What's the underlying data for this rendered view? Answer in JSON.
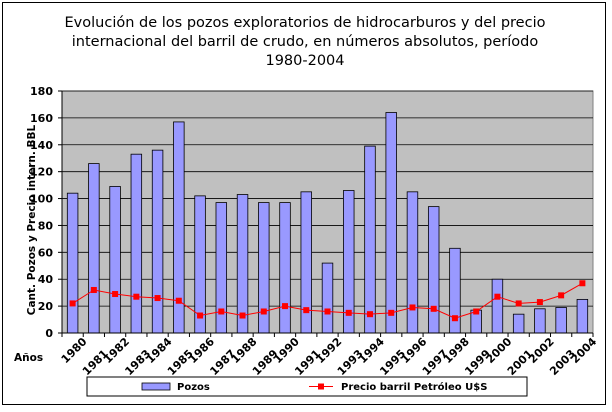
{
  "chart_data": {
    "type": "bar",
    "title_lines": [
      "Evolución de los pozos exploratorios de hidrocarburos y del precio",
      "internacional del barril de crudo, en números absolutos, período",
      "1980-2004"
    ],
    "ylabel": "Cant. Pozos y Precio intern.  BBL",
    "xlabel": "Años",
    "ylim": [
      0,
      180
    ],
    "yticks": [
      0,
      20,
      40,
      60,
      80,
      100,
      120,
      140,
      160,
      180
    ],
    "grid": true,
    "legend_position": "bottom",
    "categories": [
      "1980",
      "1981",
      "1982",
      "1983",
      "1984",
      "1985",
      "1986",
      "1987",
      "1988",
      "1989",
      "1990",
      "1991",
      "1992",
      "1993",
      "1994",
      "1995",
      "1996",
      "1997",
      "1998",
      "1999",
      "2000",
      "2001",
      "2002",
      "2003",
      "2004"
    ],
    "series": [
      {
        "name": "Pozos",
        "type": "bar",
        "color": "#9999ff",
        "values": [
          104,
          126,
          109,
          133,
          136,
          157,
          102,
          97,
          103,
          97,
          97,
          105,
          52,
          106,
          139,
          164,
          105,
          94,
          63,
          17,
          40,
          14,
          18,
          19,
          25
        ]
      },
      {
        "name": "Precio barril Petróleo U$S",
        "type": "line",
        "color": "#ff0000",
        "values": [
          22,
          32,
          29,
          27,
          26,
          24,
          13,
          16,
          13,
          16,
          20,
          17,
          16,
          15,
          14,
          15,
          19,
          18,
          11,
          16,
          27,
          22,
          23,
          28,
          37
        ]
      }
    ]
  }
}
